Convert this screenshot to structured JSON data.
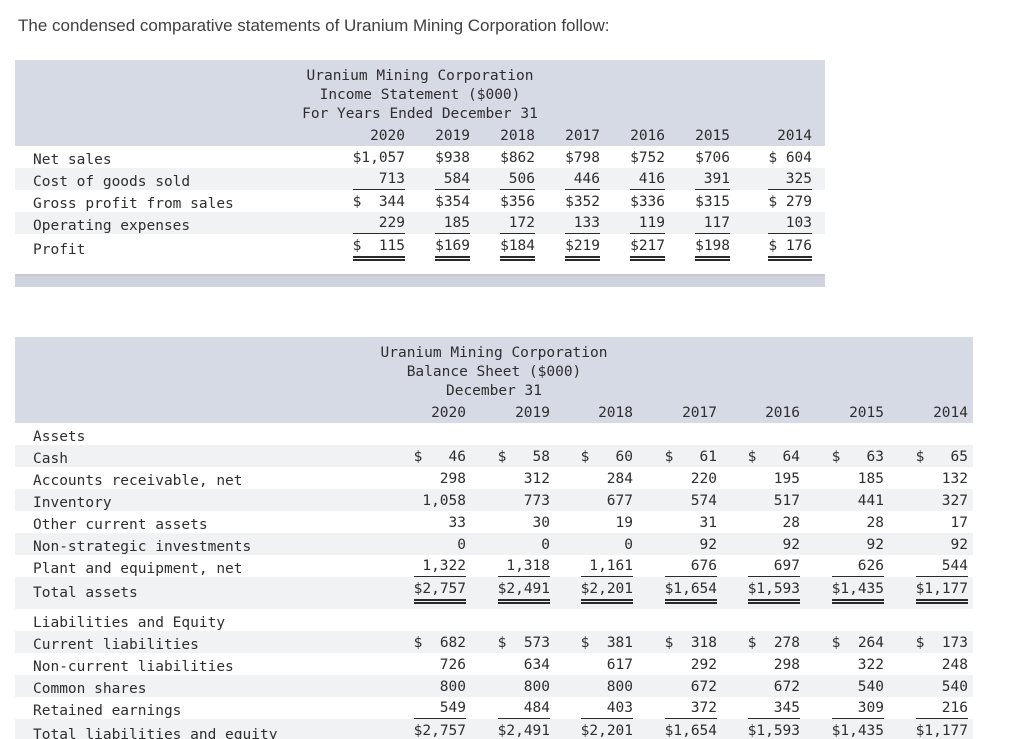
{
  "page_title": "The condensed comparative statements of Uranium Mining Corporation follow:",
  "colors": {
    "header_band": "#d6dae4",
    "footer_band": "#ced3dd",
    "row_shade": "#f1f2f4",
    "text": "#2e2e2e",
    "rule": "#2a2a2a",
    "footer_border_light": "#c6c9d1",
    "footer_border_dark": "#8e93a1"
  },
  "income_statement": {
    "title_lines": [
      "Uranium Mining Corporation",
      "Income Statement ($000)",
      "For Years Ended December 31"
    ],
    "years": [
      "2020",
      "2019",
      "2018",
      "2017",
      "2016",
      "2015",
      "2014"
    ],
    "rows": [
      {
        "label": "Net sales",
        "style": "plain",
        "values": [
          "$1,057",
          "$938",
          "$862",
          "$798",
          "$752",
          "$706",
          "$ 604"
        ]
      },
      {
        "label": "Cost of goods sold",
        "style": "underline",
        "values": [
          "713",
          "584",
          "506",
          "446",
          "416",
          "391",
          "325"
        ]
      },
      {
        "label": "Gross profit from sales",
        "style": "plain",
        "values": [
          "$  344",
          "$354",
          "$356",
          "$352",
          "$336",
          "$315",
          "$ 279"
        ]
      },
      {
        "label": "Operating expenses",
        "style": "underline",
        "values": [
          "229",
          "185",
          "172",
          "133",
          "119",
          "117",
          "103"
        ]
      },
      {
        "label": "Profit",
        "style": "double",
        "values": [
          "$  115",
          "$169",
          "$184",
          "$219",
          "$217",
          "$198",
          "$ 176"
        ]
      }
    ]
  },
  "balance_sheet": {
    "title_lines": [
      "Uranium Mining Corporation",
      "Balance Sheet ($000)",
      "December 31"
    ],
    "years": [
      "2020",
      "2019",
      "2018",
      "2017",
      "2016",
      "2015",
      "2014"
    ],
    "rows": [
      {
        "label": "Assets",
        "style": "section",
        "values": []
      },
      {
        "label": "Cash",
        "style": "plain",
        "values": [
          "$   46",
          "$   58",
          "$   60",
          "$   61",
          "$   64",
          "$   63",
          "$   65"
        ]
      },
      {
        "label": "Accounts receivable, net",
        "style": "plain",
        "values": [
          "298",
          "312",
          "284",
          "220",
          "195",
          "185",
          "132"
        ]
      },
      {
        "label": "Inventory",
        "style": "plain",
        "values": [
          "1,058",
          "773",
          "677",
          "574",
          "517",
          "441",
          "327"
        ]
      },
      {
        "label": "Other current assets",
        "style": "plain",
        "values": [
          "33",
          "30",
          "19",
          "31",
          "28",
          "28",
          "17"
        ]
      },
      {
        "label": "Non-strategic investments",
        "style": "plain",
        "values": [
          "0",
          "0",
          "0",
          "92",
          "92",
          "92",
          "92"
        ]
      },
      {
        "label": "Plant and equipment, net",
        "style": "underline",
        "values": [
          "1,322",
          "1,318",
          "1,161",
          "676",
          "697",
          "626",
          "544"
        ]
      },
      {
        "label": "Total assets",
        "style": "double",
        "values": [
          "$2,757",
          "$2,491",
          "$2,201",
          "$1,654",
          "$1,593",
          "$1,435",
          "$1,177"
        ]
      },
      {
        "label": "Liabilities and Equity",
        "style": "section",
        "values": []
      },
      {
        "label": "Current liabilities",
        "style": "plain",
        "values": [
          "$  682",
          "$  573",
          "$  381",
          "$  318",
          "$  278",
          "$  264",
          "$  173"
        ]
      },
      {
        "label": "Non-current liabilities",
        "style": "plain",
        "values": [
          "726",
          "634",
          "617",
          "292",
          "298",
          "322",
          "248"
        ]
      },
      {
        "label": "Common shares",
        "style": "plain",
        "values": [
          "800",
          "800",
          "800",
          "672",
          "672",
          "540",
          "540"
        ]
      },
      {
        "label": "Retained earnings",
        "style": "underline",
        "values": [
          "549",
          "484",
          "403",
          "372",
          "345",
          "309",
          "216"
        ]
      },
      {
        "label": "Total liabilities and equity",
        "style": "double",
        "values": [
          "$2,757",
          "$2,491",
          "$2,201",
          "$1,654",
          "$1,593",
          "$1,435",
          "$1,177"
        ]
      }
    ]
  }
}
